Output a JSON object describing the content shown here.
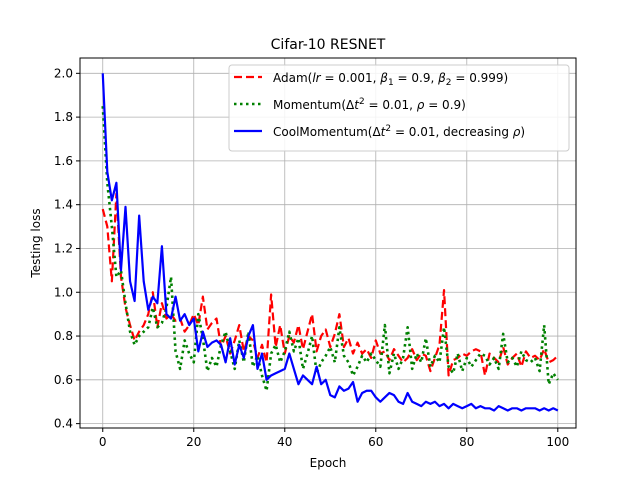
{
  "chart_data": {
    "type": "line",
    "title": "Cifar-10 RESNET",
    "xlabel": "Epoch",
    "ylabel": "Testing loss",
    "xlim": [
      -5,
      104
    ],
    "ylim": [
      0.38,
      2.07
    ],
    "x_ticks": [
      0,
      20,
      40,
      60,
      80,
      100
    ],
    "y_ticks": [
      0.4,
      0.6,
      0.8,
      1.0,
      1.2,
      1.4,
      1.6,
      1.8,
      2.0
    ],
    "x_tick_labels": [
      "0",
      "20",
      "40",
      "60",
      "80",
      "100"
    ],
    "y_tick_labels": [
      "0.4",
      "0.6",
      "0.8",
      "1.0",
      "1.2",
      "1.4",
      "1.6",
      "1.8",
      "2.0"
    ],
    "grid": true,
    "legend_position": "top-right",
    "series": [
      {
        "name": "Adam(lr = 0.001, β1 = 0.9, β2 = 0.999)",
        "color": "#ff0000",
        "style": "dashed",
        "values": [
          1.38,
          1.3,
          1.05,
          1.45,
          1.07,
          0.93,
          0.85,
          0.78,
          0.82,
          0.85,
          0.9,
          1.0,
          0.84,
          0.95,
          0.88,
          0.9,
          0.87,
          0.88,
          0.82,
          0.85,
          0.9,
          0.85,
          0.98,
          0.83,
          0.86,
          0.88,
          0.75,
          0.8,
          0.72,
          0.78,
          0.85,
          0.73,
          0.8,
          0.78,
          0.7,
          0.76,
          0.68,
          0.99,
          0.75,
          0.85,
          0.72,
          0.8,
          0.77,
          0.85,
          0.74,
          0.82,
          0.9,
          0.73,
          0.8,
          0.83,
          0.75,
          0.81,
          0.9,
          0.75,
          0.79,
          0.72,
          0.77,
          0.72,
          0.74,
          0.7,
          0.78,
          0.72,
          0.73,
          0.69,
          0.74,
          0.71,
          0.68,
          0.7,
          0.74,
          0.69,
          0.72,
          0.71,
          0.64,
          0.7,
          0.76,
          1.01,
          0.62,
          0.69,
          0.7,
          0.72,
          0.71,
          0.73,
          0.74,
          0.73,
          0.62,
          0.72,
          0.7,
          0.68,
          0.75,
          0.67,
          0.7,
          0.72,
          0.66,
          0.73,
          0.7,
          0.71,
          0.69,
          0.74,
          0.68,
          0.69,
          0.71
        ]
      },
      {
        "name": "Momentum(Δt² = 0.01, ρ = 0.9)",
        "color": "#008000",
        "style": "dotted",
        "values": [
          1.85,
          1.5,
          1.3,
          1.07,
          1.1,
          0.95,
          0.82,
          0.76,
          0.8,
          0.82,
          0.84,
          0.93,
          0.84,
          0.86,
          0.93,
          1.07,
          0.73,
          0.65,
          0.78,
          0.72,
          0.68,
          0.9,
          0.79,
          0.64,
          0.7,
          0.66,
          0.76,
          0.82,
          0.73,
          0.65,
          0.78,
          0.68,
          0.82,
          0.66,
          0.71,
          0.62,
          0.55,
          0.72,
          0.76,
          0.68,
          0.73,
          0.82,
          0.73,
          0.79,
          0.65,
          0.72,
          0.8,
          0.63,
          0.68,
          0.71,
          0.75,
          0.68,
          0.84,
          0.71,
          0.68,
          0.62,
          0.66,
          0.71,
          0.68,
          0.72,
          0.69,
          0.66,
          0.85,
          0.63,
          0.72,
          0.65,
          0.7,
          0.84,
          0.65,
          0.72,
          0.68,
          0.79,
          0.66,
          0.71,
          0.68,
          0.84,
          0.66,
          0.63,
          0.72,
          0.64,
          0.7,
          0.66,
          0.69,
          0.72,
          0.71,
          0.67,
          0.7,
          0.65,
          0.81,
          0.68,
          0.7,
          0.66,
          0.73,
          0.69,
          0.68,
          0.7,
          0.64,
          0.85,
          0.58,
          0.63,
          0.6
        ]
      },
      {
        "name": "CoolMomentum(Δt² = 0.01, decreasing ρ)",
        "color": "#0000ff",
        "style": "solid",
        "values": [
          2.0,
          1.55,
          1.42,
          1.5,
          1.1,
          1.39,
          1.05,
          0.96,
          1.35,
          1.05,
          0.92,
          0.98,
          0.95,
          1.21,
          0.9,
          0.88,
          0.98,
          0.87,
          0.9,
          0.85,
          0.88,
          0.73,
          0.82,
          0.75,
          0.77,
          0.78,
          0.76,
          0.68,
          0.79,
          0.67,
          0.76,
          0.7,
          0.8,
          0.85,
          0.65,
          0.72,
          0.6,
          0.62,
          0.63,
          0.64,
          0.65,
          0.72,
          0.65,
          0.58,
          0.62,
          0.6,
          0.58,
          0.66,
          0.58,
          0.6,
          0.53,
          0.52,
          0.57,
          0.55,
          0.56,
          0.59,
          0.5,
          0.54,
          0.55,
          0.55,
          0.52,
          0.5,
          0.52,
          0.54,
          0.53,
          0.5,
          0.49,
          0.54,
          0.5,
          0.49,
          0.48,
          0.5,
          0.49,
          0.5,
          0.48,
          0.49,
          0.47,
          0.49,
          0.48,
          0.47,
          0.48,
          0.49,
          0.47,
          0.48,
          0.47,
          0.47,
          0.46,
          0.48,
          0.47,
          0.46,
          0.47,
          0.47,
          0.46,
          0.47,
          0.47,
          0.47,
          0.46,
          0.47,
          0.46,
          0.47,
          0.46
        ]
      }
    ]
  }
}
